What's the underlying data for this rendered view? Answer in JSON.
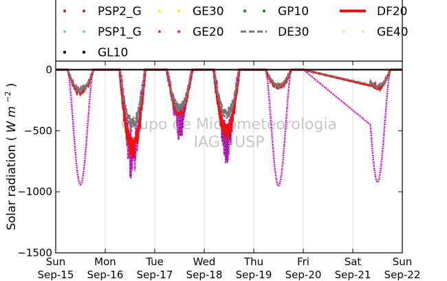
{
  "chart_data": {
    "type": "line",
    "ylabel_main": "Solar radiation",
    "ylabel_unit_base": "W",
    "ylabel_unit_sub": "m",
    "ylabel_unit_exp": "−2",
    "ylim": [
      -1500,
      70
    ],
    "yticks": [
      0,
      -500,
      -1000,
      -1500
    ],
    "ytick_labels": [
      "0",
      "−500",
      "−1000",
      "−1500"
    ],
    "x_range_days": [
      0,
      7
    ],
    "xticks": [
      {
        "day": "Sun",
        "date": "Sep-15"
      },
      {
        "day": "Mon",
        "date": "Sep-16"
      },
      {
        "day": "Tue",
        "date": "Sep-17"
      },
      {
        "day": "Wed",
        "date": "Sep-18"
      },
      {
        "day": "Thu",
        "date": "Sep-19"
      },
      {
        "day": "Fri",
        "date": "Sep-20"
      },
      {
        "day": "Sat",
        "date": "Sep-21"
      },
      {
        "day": "Sun",
        "date": "Sep-22"
      }
    ],
    "grid": "vertical",
    "zero_line": 0,
    "watermark": [
      "Grupo de Micrometeorologia",
      "IAG / USP"
    ],
    "legend_placement": "top",
    "series": [
      {
        "name": "PSP2_G",
        "color": "#b5342b",
        "style": "dots"
      },
      {
        "name": "GE30",
        "color": "#ffee22",
        "style": "dots"
      },
      {
        "name": "GP10",
        "color": "#1f8a2a",
        "style": "dots"
      },
      {
        "name": "DF20",
        "color": "#ee1111",
        "style": "solid"
      },
      {
        "name": "PSP1_G",
        "color": "#66ddcc",
        "style": "dots"
      },
      {
        "name": "GE20",
        "color": "#ee22ee",
        "style": "dots"
      },
      {
        "name": "DE30",
        "color": "#777777",
        "style": "dashed"
      },
      {
        "name": "GE40",
        "color": "#f5e6a0",
        "style": "dots"
      },
      {
        "name": "GL10",
        "color": "#000000",
        "style": "dots"
      }
    ],
    "daily_minimum": [
      {
        "day": 0,
        "peak": 0.5,
        "DF20": -210,
        "DE30": -190,
        "global": -940
      },
      {
        "day": 1,
        "peak": 1.55,
        "DF20": -740,
        "DE30": -520,
        "global": -950
      },
      {
        "day": 2,
        "peak": 2.5,
        "DF20": -390,
        "DE30": -360,
        "global": -600
      },
      {
        "day": 3,
        "peak": 3.45,
        "DF20": -580,
        "DE30": -420,
        "global": -780
      },
      {
        "day": 4,
        "peak": 4.5,
        "DF20": -160,
        "DE30": -150,
        "global": -950
      },
      {
        "day": 6,
        "peak": 6.5,
        "DF20": -170,
        "DE30": -160,
        "global": -920
      }
    ]
  }
}
